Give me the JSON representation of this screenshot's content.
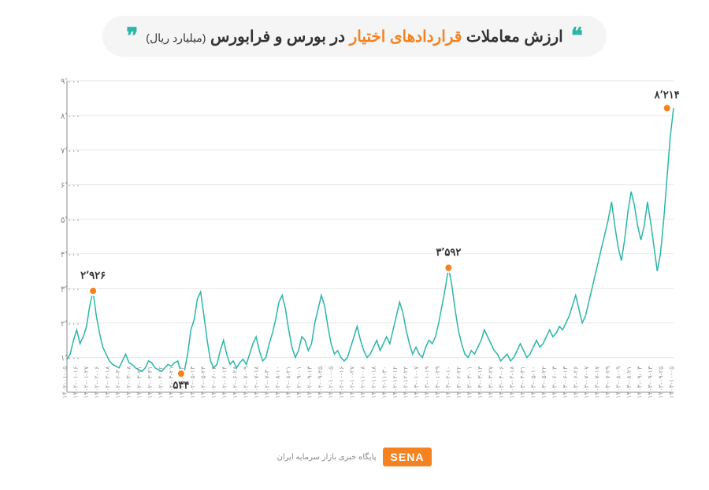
{
  "title": {
    "part1": "ارزش معاملات",
    "part2": "قراردادهای اختیار",
    "part3": "در بورس و فرابورس",
    "subtitle": "(میلیارد ریال)"
  },
  "footer": {
    "badge": "SENA",
    "caption": "پایگاه خبری بازار سرمایه ایران"
  },
  "chart": {
    "type": "line",
    "line_color": "#2bb6a8",
    "marker_color": "#f58220",
    "background_color": "#ffffff",
    "grid_color": "#e8e8e8",
    "axis_color": "#888888",
    "text_color": "#333333",
    "ylim": [
      0,
      9000
    ],
    "ytick_step": 1000,
    "yticks": [
      "۰",
      "۱٬۰۰۰",
      "۲٬۰۰۰",
      "۳٬۰۰۰",
      "۴٬۰۰۰",
      "۵٬۰۰۰",
      "۶٬۰۰۰",
      "۷٬۰۰۰",
      "۸٬۰۰۰",
      "۹٬۰۰۰"
    ],
    "xticks": [
      "۱۴۰۲-۰۱-۰۵",
      "۱۴۰۲-۰۱-۱۶",
      "۱۴۰۲-۰۱-۲۷",
      "۱۴۰۲-۰۲-۰۶",
      "۱۴۰۲-۰۲-۱۸",
      "۱۴۰۲-۰۲-۳۰",
      "۱۴۰۲-۰۳-۰۸",
      "۱۴۰۲-۰۳-۲۱",
      "۱۴۰۲-۰۳-۳۱",
      "۱۴۰۲-۰۴-۱۲",
      "۱۴۰۲-۰۴-۲۱",
      "۱۴۰۲-۰۵-۰۲",
      "۱۴۰۲-۰۵-۱۴",
      "۱۴۰۲-۰۵-۲۴",
      "۱۴۰۲-۰۶-۰۴",
      "۱۴۰۲-۰۶-۱۴",
      "۱۴۰۲-۰۶-۲۸",
      "۱۴۰۲-۰۷-۰۹",
      "۱۴۰۲-۰۷-۱۸",
      "۱۴۰۲-۰۷-۳۰",
      "۱۴۰۲-۰۸-۱۰",
      "۱۴۰۲-۰۸-۲۱",
      "۱۴۰۲-۰۹-۰۱",
      "۱۴۰۲-۰۹-۱۳",
      "۱۴۰۲-۰۹-۲۵",
      "۱۴۰۲-۱۰-۰۵",
      "۱۴۰۲-۱۰-۱۶",
      "۱۴۰۲-۱۰-۲۷",
      "۱۴۰۲-۱۱-۰۸",
      "۱۴۰۲-۱۱-۱۸",
      "۱۴۰۲-۱۱-۳۰",
      "۱۴۰۲-۱۲-۱۲",
      "۱۴۰۲-۱۲-۲۲",
      "۱۴۰۳-۰۱-۰۷",
      "۱۴۰۳-۰۱-۱۹",
      "۱۴۰۳-۰۱-۲۹",
      "۱۴۰۳-۰۲-۱۰",
      "۱۴۰۳-۰۲-۲۲",
      "۱۴۰۳-۰۳-۰۱",
      "۱۴۰۳-۰۳-۱۳",
      "۱۴۰۳-۰۳-۲۷",
      "۱۴۰۳-۰۴-۰۶",
      "۱۴۰۳-۰۴-۱۸",
      "۱۴۰۳-۰۴-۳۱",
      "۱۴۰۳-۰۵-۱۰",
      "۱۴۰۳-۰۵-۲۲",
      "۱۴۰۳-۰۶-۰۳",
      "۱۴۰۳-۰۶-۱۳",
      "۱۴۰۳-۰۶-۲۶",
      "۱۴۰۳-۰۷-۰۷",
      "۱۴۰۳-۰۷-۱۷",
      "۱۴۰۳-۰۷-۲۹",
      "۱۴۰۳-۰۸-۰۹",
      "۱۴۰۳-۰۸-۲۱",
      "۱۴۰۳-۰۹-۰۳",
      "۱۴۰۳-۰۹-۱۳",
      "۱۴۰۳-۰۹-۲۵",
      "۱۴۰۳-۱۰-۰۵"
    ],
    "values": [
      950,
      1100,
      1500,
      1800,
      1400,
      1600,
      1900,
      2500,
      2926,
      2200,
      1700,
      1300,
      1100,
      900,
      800,
      750,
      700,
      900,
      1100,
      850,
      800,
      700,
      650,
      600,
      700,
      900,
      850,
      700,
      650,
      600,
      700,
      800,
      750,
      850,
      900,
      534,
      600,
      1100,
      1800,
      2100,
      2700,
      2900,
      2200,
      1500,
      900,
      700,
      800,
      1200,
      1500,
      1100,
      800,
      900,
      700,
      850,
      950,
      800,
      1100,
      1400,
      1600,
      1200,
      900,
      1000,
      1400,
      1700,
      2100,
      2600,
      2800,
      2400,
      1800,
      1300,
      1000,
      1200,
      1600,
      1500,
      1200,
      1400,
      2000,
      2400,
      2800,
      2500,
      1900,
      1400,
      1100,
      1200,
      1000,
      900,
      1000,
      1300,
      1600,
      1900,
      1500,
      1200,
      1000,
      1100,
      1300,
      1500,
      1200,
      1400,
      1600,
      1400,
      1800,
      2200,
      2600,
      2300,
      1800,
      1400,
      1100,
      1300,
      1100,
      1000,
      1300,
      1500,
      1400,
      1600,
      2000,
      2500,
      3000,
      3592,
      3100,
      2400,
      1800,
      1400,
      1100,
      1000,
      1200,
      1100,
      1300,
      1500,
      1800,
      1600,
      1400,
      1200,
      1100,
      900,
      1000,
      1100,
      900,
      1000,
      1200,
      1400,
      1200,
      1000,
      1100,
      1300,
      1500,
      1300,
      1400,
      1600,
      1800,
      1600,
      1700,
      1900,
      1800,
      2000,
      2200,
      2500,
      2800,
      2400,
      2000,
      2200,
      2600,
      3000,
      3400,
      3800,
      4200,
      4600,
      5000,
      5500,
      4800,
      4200,
      3800,
      4400,
      5200,
      5800,
      5400,
      4800,
      4400,
      4800,
      5500,
      4900,
      4200,
      3500,
      4000,
      5000,
      6200,
      7400,
      8214
    ],
    "annotations": [
      {
        "index": 8,
        "label": "۲٬۹۲۶",
        "value": 2926,
        "dy": -15
      },
      {
        "index": 35,
        "label": "۵۳۴",
        "value": 534,
        "dy": 18
      },
      {
        "index": 117,
        "label": "۳٬۵۹۲",
        "value": 3592,
        "dy": -15
      },
      {
        "index": 184,
        "label": "۸٬۲۱۴",
        "value": 8214,
        "dy": -12
      }
    ]
  }
}
